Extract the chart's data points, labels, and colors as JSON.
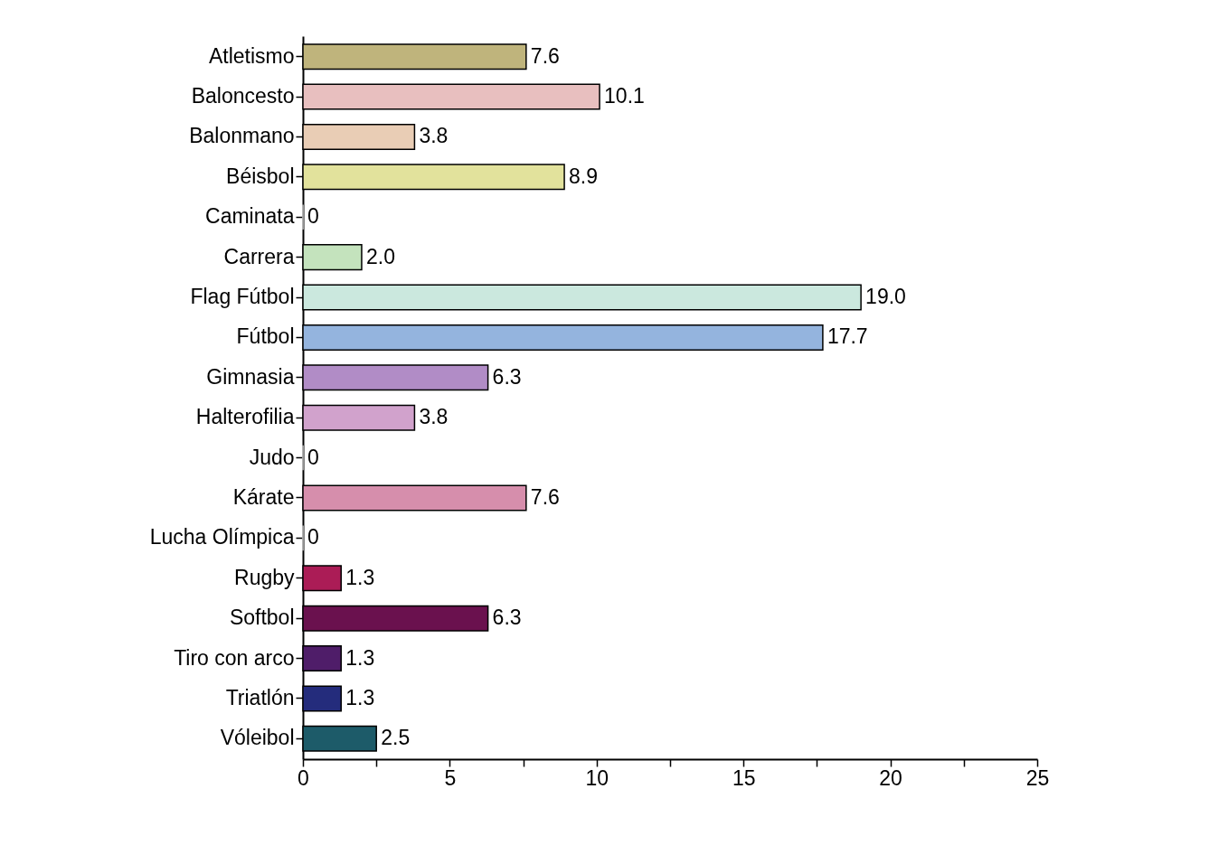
{
  "chart_data": {
    "type": "bar",
    "orientation": "horizontal",
    "categories": [
      "Atletismo",
      "Baloncesto",
      "Balonmano",
      "Béisbol",
      "Caminata",
      "Carrera",
      "Flag Fútbol",
      "Fútbol",
      "Gimnasia",
      "Halterofilia",
      "Judo",
      "Kárate",
      "Lucha Olímpica",
      "Rugby",
      "Softbol",
      "Tiro con arco",
      "Triatlón",
      "Vóleibol"
    ],
    "values": [
      7.6,
      10.1,
      3.8,
      8.9,
      0,
      2.0,
      19.0,
      17.7,
      6.3,
      3.8,
      0,
      7.6,
      0,
      1.3,
      6.3,
      1.3,
      1.3,
      2.5
    ],
    "value_labels": [
      "7.6",
      "10.1",
      "3.8",
      "8.9",
      "0",
      "2.0",
      "19.0",
      "17.7",
      "6.3",
      "3.8",
      "0",
      "7.6",
      "0",
      "1.3",
      "6.3",
      "1.3",
      "1.3",
      "2.5"
    ],
    "colors": [
      "#bfb47c",
      "#e8bfbf",
      "#e9cdb5",
      "#e2e29c",
      "#c8c8c8",
      "#c4e3bd",
      "#cbe8de",
      "#94b4de",
      "#b18cc6",
      "#d1a2cc",
      "#c8c8c8",
      "#d68eac",
      "#c8c8c8",
      "#ab1c56",
      "#6a114e",
      "#4f1d69",
      "#242c7c",
      "#1d5b69"
    ],
    "xlim": [
      0,
      25
    ],
    "xticks": [
      0,
      {
        "value": 2.5,
        "label": null
      },
      5,
      {
        "value": 7.5,
        "label": null
      },
      10,
      {
        "value": 12.5,
        "label": null
      },
      15,
      {
        "value": 17.5,
        "label": null
      },
      20,
      {
        "value": 22.5,
        "label": null
      },
      25
    ],
    "grid": false
  }
}
